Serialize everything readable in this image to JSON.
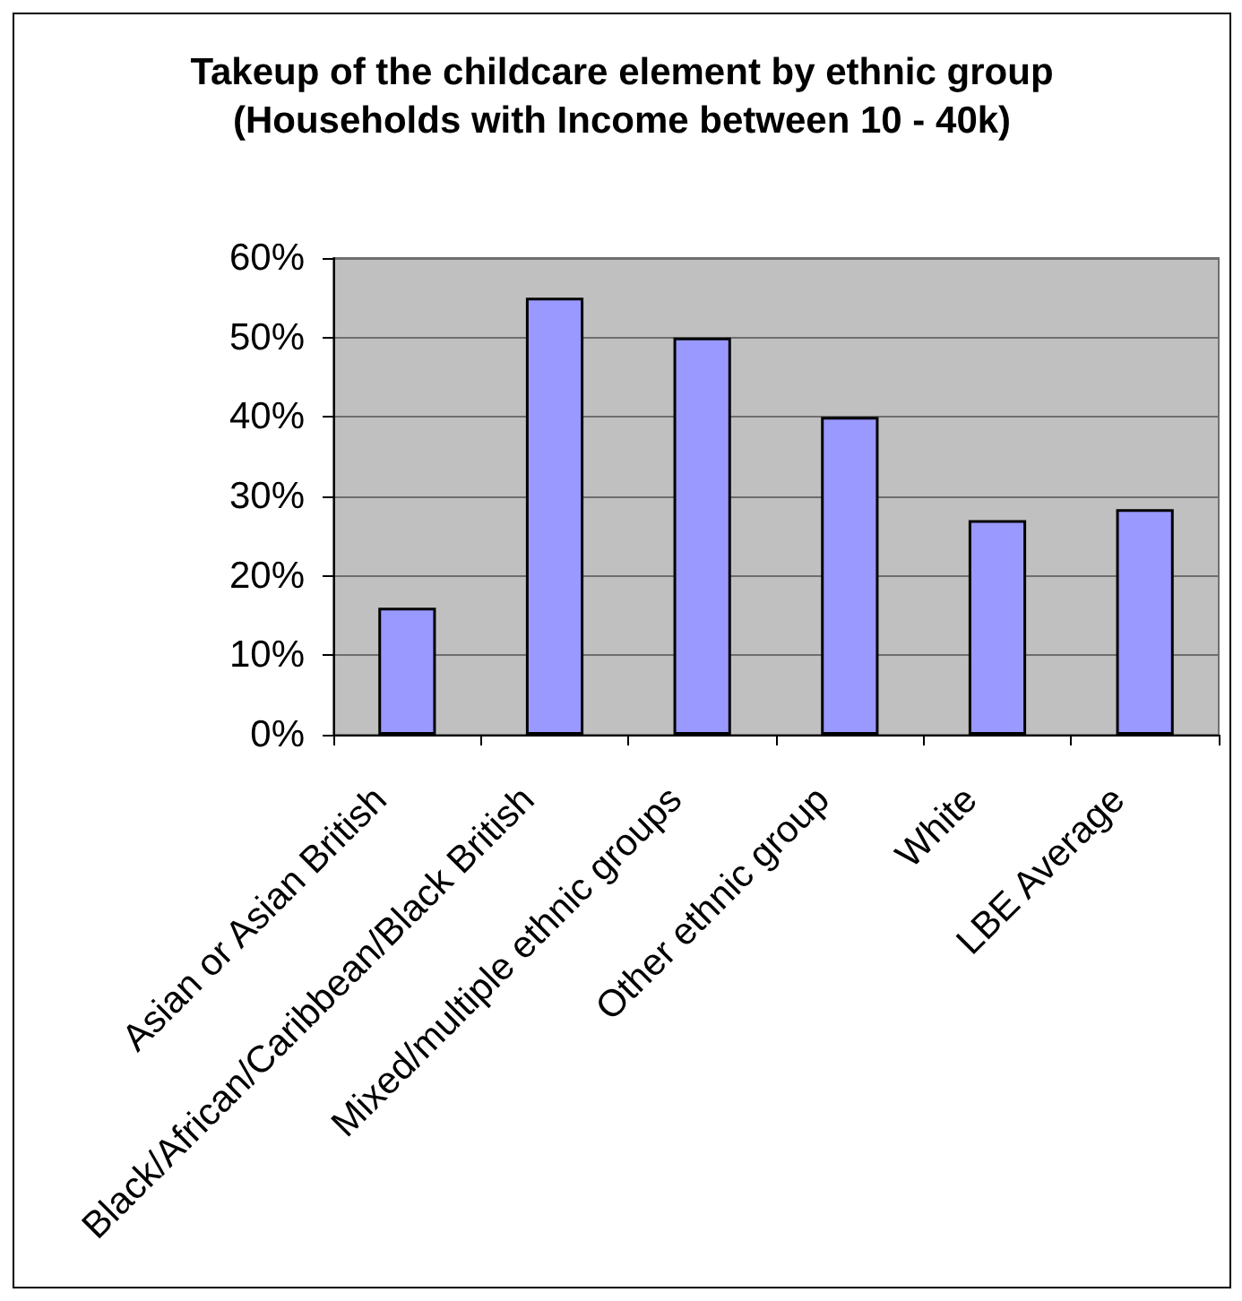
{
  "chart_data": {
    "type": "bar",
    "title": "Takeup of the childcare element by ethnic group",
    "subtitle": "(Households with Income between 10 - 40k)",
    "categories": [
      "Asian or Asian British",
      "Black/African/Caribbean/Black British",
      "Mixed/multiple ethnic groups",
      "Other ethnic group",
      "White",
      "LBE Average"
    ],
    "values": [
      16,
      55,
      50,
      40,
      27,
      28.4
    ],
    "color": "#9999ff",
    "ylim": [
      0,
      60
    ],
    "yticks": [
      {
        "value": 0,
        "label": "0%"
      },
      {
        "value": 10,
        "label": "10%"
      },
      {
        "value": 20,
        "label": "20%"
      },
      {
        "value": 30,
        "label": "30%"
      },
      {
        "value": 40,
        "label": "40%"
      },
      {
        "value": 50,
        "label": "50%"
      },
      {
        "value": 60,
        "label": "60%"
      }
    ],
    "grid": "y"
  }
}
